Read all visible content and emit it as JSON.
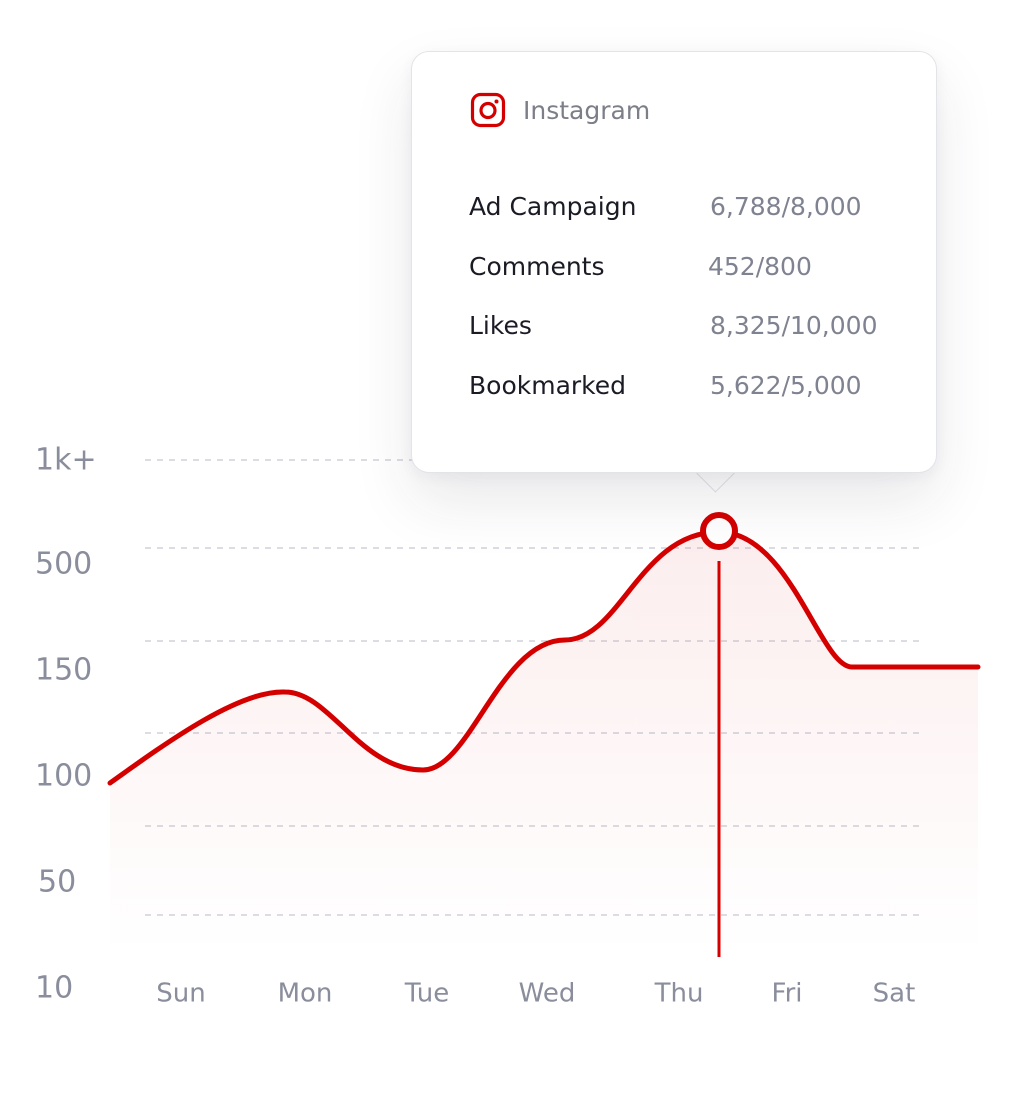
{
  "chart_data": {
    "type": "area",
    "x_categories": [
      "Sun",
      "Mon",
      "Tue",
      "Wed",
      "Thu",
      "Fri",
      "Sat"
    ],
    "y_tick_labels": [
      "10",
      "50",
      "100",
      "150",
      "500",
      "1k+"
    ],
    "series": [
      {
        "color": "#d40000",
        "points": [
          {
            "x": "Sun",
            "y": 110
          },
          {
            "x": "Mon",
            "y": 134
          },
          {
            "x": "Tue",
            "y": 103
          },
          {
            "x": "Wed",
            "y": 165
          },
          {
            "x": "Thu",
            "y": 525
          },
          {
            "x": "Fri",
            "y": 150
          },
          {
            "x": "Sat",
            "y": 148
          }
        ]
      }
    ],
    "highlighted_category": "Thu",
    "grid": "horizontal dashed",
    "y_scale": "categorical (non-linear)"
  },
  "tooltip": {
    "source": "Instagram",
    "icon": "instagram-icon",
    "rows": [
      {
        "label": "Ad Campaign",
        "value": "6,788/8,000"
      },
      {
        "label": "Comments",
        "value": "452/800"
      },
      {
        "label": "Likes",
        "value": "8,325/10,000"
      },
      {
        "label": "Bookmarked",
        "value": "5,622/5,000"
      }
    ]
  },
  "colors": {
    "accent": "#d40000",
    "grid": "#dcdde3",
    "axis_text": "#8a8d9c"
  }
}
